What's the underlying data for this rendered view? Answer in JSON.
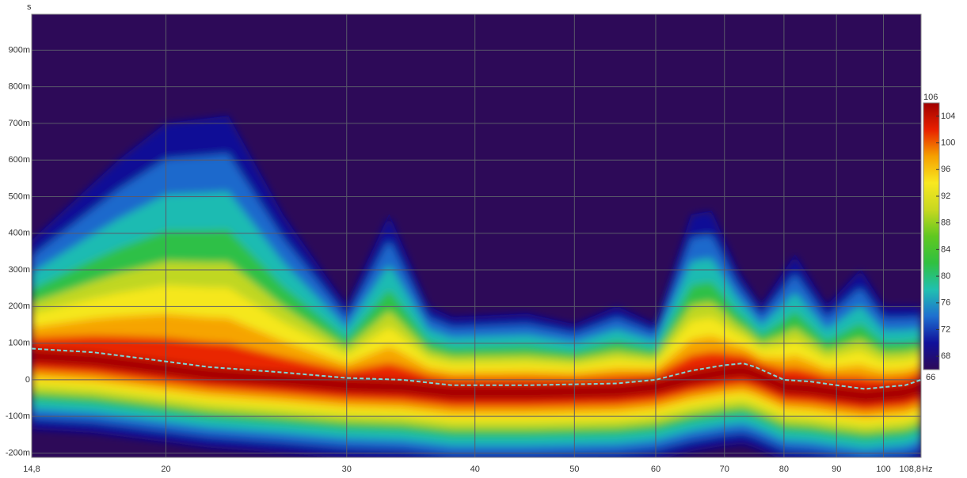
{
  "chart_data": {
    "type": "spectrogram",
    "y_label": "s",
    "x_unit": "Hz",
    "xscale": "log",
    "xlim": [
      14.8,
      108.8
    ],
    "xticks": [
      {
        "value": 14.8,
        "label": "14,8"
      },
      20,
      30,
      40,
      50,
      60,
      70,
      80,
      90,
      100,
      {
        "value": 108.8,
        "label": "108,8"
      }
    ],
    "ylim": [
      -0.212,
      0.998
    ],
    "yticks": [
      {
        "value": -0.2,
        "label": "-200m"
      },
      {
        "value": -0.1,
        "label": "-100m"
      },
      0,
      {
        "value": 0.1,
        "label": "100m"
      },
      {
        "value": 0.2,
        "label": "200m"
      },
      {
        "value": 0.3,
        "label": "300m"
      },
      {
        "value": 0.4,
        "label": "400m"
      },
      {
        "value": 0.5,
        "label": "500m"
      },
      {
        "value": 0.6,
        "label": "600m"
      },
      {
        "value": 0.7,
        "label": "700m"
      },
      {
        "value": 0.8,
        "label": "800m"
      },
      {
        "value": 0.9,
        "label": "900m"
      }
    ],
    "grid": true,
    "background": "#2d0a58",
    "ridge": {
      "color": "#7fd6d6",
      "x": [
        14.8,
        17,
        20,
        22,
        26,
        30,
        34,
        38,
        45,
        55,
        60,
        65,
        70,
        73,
        75,
        80,
        85,
        90,
        96,
        100,
        105,
        108.8
      ],
      "y": [
        0.085,
        0.075,
        0.05,
        0.035,
        0.02,
        0.005,
        0.0,
        -0.015,
        -0.015,
        -0.01,
        0.0,
        0.025,
        0.04,
        0.045,
        0.035,
        0.0,
        -0.005,
        -0.015,
        -0.025,
        -0.02,
        -0.015,
        0.0
      ]
    },
    "envelope": {
      "x": [
        14.8,
        18,
        20,
        23,
        26,
        30,
        33,
        36,
        38,
        45,
        50,
        55,
        60,
        65,
        68,
        72,
        76,
        82,
        88,
        95,
        100,
        108.8
      ],
      "y": [
        0.38,
        0.6,
        0.7,
        0.72,
        0.45,
        0.2,
        0.45,
        0.2,
        0.17,
        0.18,
        0.15,
        0.2,
        0.15,
        0.45,
        0.46,
        0.3,
        0.2,
        0.34,
        0.2,
        0.3,
        0.2,
        0.2
      ]
    },
    "colorbar": {
      "clim": [
        66,
        106
      ],
      "ticks": [
        68,
        72,
        76,
        80,
        84,
        88,
        92,
        96,
        100,
        104
      ],
      "colors": [
        "#2d0a58",
        "#10109a",
        "#1e6fd0",
        "#20c0b0",
        "#30c040",
        "#60c820",
        "#c8d820",
        "#f8e820",
        "#f5a000",
        "#e82000",
        "#a00000"
      ]
    }
  }
}
